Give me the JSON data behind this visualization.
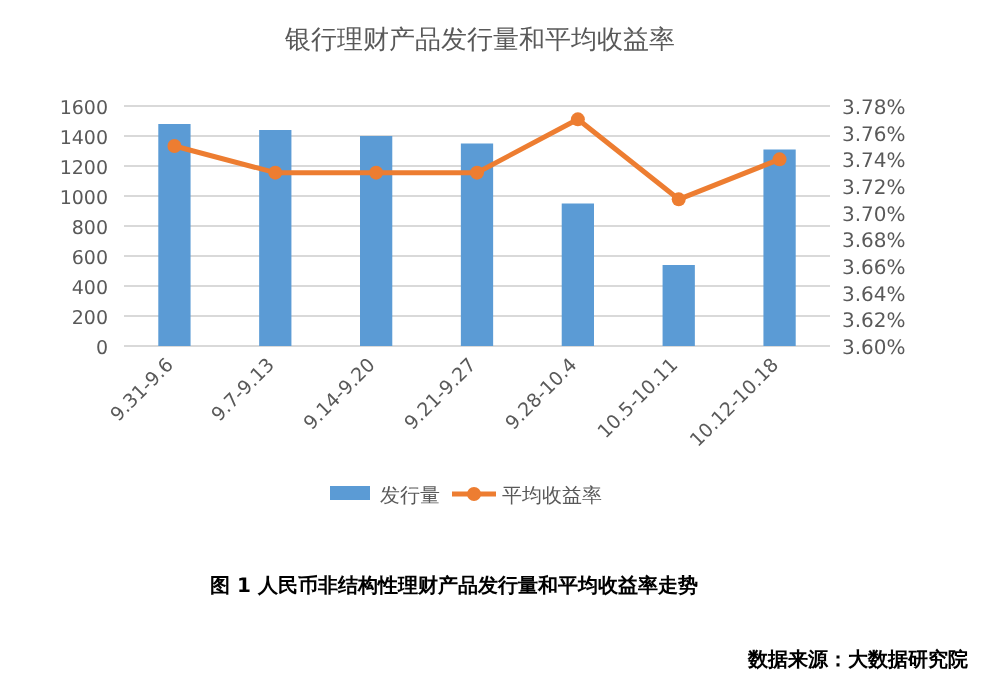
{
  "chart_data": {
    "type": "bar",
    "title": "银行理财产品发行量和平均收益率",
    "categories": [
      "9.31-9.6",
      "9.7-9.13",
      "9.14-9.20",
      "9.21-9.27",
      "9.28-10.4",
      "10.5-10.11",
      "10.12-10.18"
    ],
    "series": [
      {
        "name": "发行量",
        "color": "#5b9bd5",
        "values": [
          1480,
          1440,
          1400,
          1350,
          950,
          540,
          1310
        ]
      },
      {
        "name": "平均收益率",
        "type": "line",
        "axis": "y2",
        "color": "#ed7d31",
        "values": [
          3.75,
          3.73,
          3.73,
          3.73,
          3.77,
          3.71,
          3.74
        ]
      }
    ],
    "ylim": [
      0,
      1600
    ],
    "yticks": [
      0,
      200,
      400,
      600,
      800,
      1000,
      1200,
      1400,
      1600
    ],
    "y2lim": [
      3.6,
      3.78
    ],
    "y2ticks": [
      {
        "value": 3.6,
        "label": "3.60%"
      },
      {
        "value": 3.62,
        "label": "3.62%"
      },
      {
        "value": 3.64,
        "label": "3.64%"
      },
      {
        "value": 3.66,
        "label": "3.66%"
      },
      {
        "value": 3.68,
        "label": "3.68%"
      },
      {
        "value": 3.7,
        "label": "3.70%"
      },
      {
        "value": 3.72,
        "label": "3.72%"
      },
      {
        "value": 3.74,
        "label": "3.74%"
      },
      {
        "value": 3.76,
        "label": "3.76%"
      },
      {
        "value": 3.78,
        "label": "3.78%"
      }
    ],
    "grid": "y",
    "legend": "bottom",
    "marker": "circle",
    "annotations": [
      "图 1  人民币非结构性理财产品发行量和平均收益率走势",
      "数据来源：大数据研究院"
    ]
  }
}
